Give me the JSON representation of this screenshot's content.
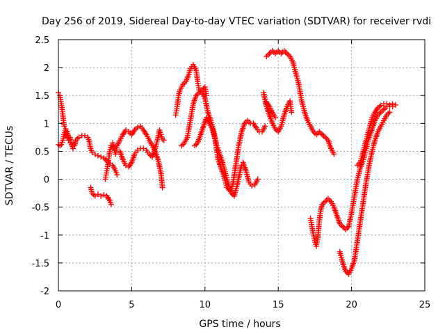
{
  "chart_data": {
    "type": "scatter",
    "title": "Day 256 of 2019, Sidereal Day-to-day VTEC variation (SDTVAR) for receiver rvdi",
    "xlabel": "GPS time / hours",
    "ylabel": "SDTVAR / TECUs",
    "xlim": [
      0,
      25
    ],
    "ylim": [
      -2,
      2.5
    ],
    "xticks": [
      "0",
      "5",
      "10",
      "15",
      "20",
      "25"
    ],
    "yticks": [
      "2.5",
      "2",
      "1.5",
      "1",
      "0.5",
      "0",
      "-0.5",
      "-1",
      "-1.5",
      "-2"
    ],
    "grid": true,
    "marker": "+",
    "color": "#ff0000",
    "series": [
      {
        "segments": [
          [
            [
              0.0,
              1.55
            ],
            [
              0.1,
              1.5
            ],
            [
              0.2,
              1.35
            ],
            [
              0.3,
              1.15
            ],
            [
              0.4,
              0.95
            ],
            [
              0.5,
              0.9
            ],
            [
              0.6,
              0.75
            ],
            [
              0.7,
              0.7
            ],
            [
              0.8,
              0.75
            ],
            [
              0.9,
              0.62
            ],
            [
              1.0,
              0.55
            ],
            [
              1.1,
              0.6
            ],
            [
              1.2,
              0.7
            ],
            [
              1.4,
              0.75
            ],
            [
              1.6,
              0.78
            ],
            [
              1.8,
              0.78
            ],
            [
              2.0,
              0.75
            ],
            [
              2.1,
              0.68
            ],
            [
              2.2,
              0.55
            ],
            [
              2.3,
              0.48
            ],
            [
              2.5,
              0.45
            ],
            [
              2.7,
              0.42
            ],
            [
              2.9,
              0.4
            ],
            [
              3.1,
              0.38
            ],
            [
              3.3,
              0.33
            ],
            [
              3.5,
              0.28
            ],
            [
              3.7,
              0.25
            ],
            [
              3.9,
              0.15
            ],
            [
              4.0,
              0.08
            ]
          ],
          [
            [
              0.0,
              0.62
            ],
            [
              0.1,
              0.6
            ],
            [
              0.2,
              0.62
            ],
            [
              0.3,
              0.7
            ],
            [
              0.4,
              0.8
            ],
            [
              0.5,
              0.9
            ],
            [
              0.6,
              0.85
            ],
            [
              0.7,
              0.7
            ],
            [
              0.8,
              0.65
            ]
          ],
          [
            [
              2.2,
              -0.15
            ],
            [
              2.3,
              -0.25
            ],
            [
              2.5,
              -0.3
            ],
            [
              2.7,
              -0.27
            ],
            [
              2.9,
              -0.3
            ],
            [
              3.1,
              -0.28
            ],
            [
              3.3,
              -0.3
            ],
            [
              3.5,
              -0.38
            ],
            [
              3.6,
              -0.45
            ]
          ],
          [
            [
              3.2,
              0.0
            ],
            [
              3.3,
              0.15
            ],
            [
              3.4,
              0.3
            ],
            [
              3.5,
              0.5
            ],
            [
              3.6,
              0.6
            ],
            [
              3.7,
              0.65
            ],
            [
              3.8,
              0.55
            ],
            [
              3.9,
              0.45
            ],
            [
              4.0,
              0.6
            ],
            [
              4.2,
              0.7
            ],
            [
              4.4,
              0.8
            ],
            [
              4.6,
              0.88
            ],
            [
              4.8,
              0.85
            ],
            [
              5.0,
              0.8
            ],
            [
              5.2,
              0.88
            ],
            [
              5.4,
              0.93
            ],
            [
              5.6,
              0.95
            ],
            [
              5.8,
              0.88
            ],
            [
              6.0,
              0.8
            ],
            [
              6.2,
              0.7
            ],
            [
              6.4,
              0.6
            ],
            [
              6.6,
              0.5
            ],
            [
              6.8,
              0.35
            ],
            [
              7.0,
              0.1
            ],
            [
              7.1,
              -0.15
            ]
          ],
          [
            [
              4.2,
              0.5
            ],
            [
              4.4,
              0.35
            ],
            [
              4.6,
              0.25
            ],
            [
              4.8,
              0.22
            ],
            [
              5.0,
              0.3
            ],
            [
              5.2,
              0.45
            ],
            [
              5.4,
              0.52
            ],
            [
              5.6,
              0.55
            ],
            [
              5.8,
              0.55
            ],
            [
              6.0,
              0.52
            ],
            [
              6.2,
              0.45
            ],
            [
              6.4,
              0.4
            ],
            [
              6.6,
              0.55
            ],
            [
              6.8,
              0.75
            ],
            [
              6.9,
              0.88
            ],
            [
              7.0,
              0.8
            ],
            [
              7.1,
              0.72
            ],
            [
              7.2,
              0.7
            ]
          ],
          [
            [
              8.0,
              1.15
            ],
            [
              8.1,
              1.3
            ],
            [
              8.2,
              1.5
            ],
            [
              8.3,
              1.6
            ],
            [
              8.5,
              1.7
            ],
            [
              8.7,
              1.75
            ],
            [
              8.9,
              1.88
            ],
            [
              9.0,
              1.98
            ],
            [
              9.2,
              2.05
            ],
            [
              9.4,
              1.95
            ],
            [
              9.5,
              1.75
            ],
            [
              9.6,
              1.6
            ],
            [
              9.8,
              1.55
            ],
            [
              10.0,
              1.45
            ],
            [
              10.2,
              1.2
            ],
            [
              10.4,
              1.05
            ],
            [
              10.6,
              0.85
            ],
            [
              10.8,
              0.6
            ],
            [
              11.0,
              0.45
            ],
            [
              11.2,
              0.3
            ],
            [
              11.4,
              0.1
            ],
            [
              11.6,
              -0.1
            ],
            [
              11.8,
              -0.25
            ],
            [
              12.0,
              -0.3
            ],
            [
              12.2,
              -0.1
            ],
            [
              12.4,
              0.15
            ],
            [
              12.5,
              0.25
            ],
            [
              12.6,
              0.3
            ],
            [
              12.8,
              0.15
            ],
            [
              13.0,
              -0.05
            ],
            [
              13.2,
              -0.12
            ],
            [
              13.4,
              -0.1
            ],
            [
              13.6,
              0.0
            ]
          ],
          [
            [
              8.4,
              0.6
            ],
            [
              8.6,
              0.65
            ],
            [
              8.8,
              0.75
            ],
            [
              9.0,
              1.05
            ],
            [
              9.2,
              1.35
            ],
            [
              9.4,
              1.5
            ],
            [
              9.6,
              1.55
            ],
            [
              9.8,
              1.6
            ],
            [
              10.0,
              1.65
            ],
            [
              10.1,
              1.5
            ]
          ],
          [
            [
              9.3,
              0.6
            ],
            [
              9.5,
              0.65
            ],
            [
              9.7,
              0.8
            ],
            [
              9.9,
              0.95
            ],
            [
              10.1,
              1.1
            ],
            [
              10.3,
              1.0
            ],
            [
              10.5,
              0.9
            ],
            [
              10.7,
              0.7
            ],
            [
              10.9,
              0.35
            ],
            [
              11.1,
              0.2
            ],
            [
              11.3,
              0.05
            ],
            [
              11.5,
              -0.15
            ],
            [
              11.7,
              -0.2
            ],
            [
              11.9,
              -0.1
            ],
            [
              12.1,
              0.25
            ],
            [
              12.3,
              0.6
            ],
            [
              12.5,
              0.85
            ],
            [
              12.7,
              1.0
            ],
            [
              12.9,
              1.05
            ],
            [
              13.1,
              1.0
            ],
            [
              13.3,
              1.0
            ],
            [
              13.5,
              0.92
            ],
            [
              13.7,
              0.85
            ],
            [
              13.9,
              0.85
            ],
            [
              14.1,
              0.95
            ]
          ],
          [
            [
              14.0,
              1.55
            ],
            [
              14.2,
              1.3
            ],
            [
              14.4,
              1.15
            ],
            [
              14.6,
              1.0
            ],
            [
              14.8,
              0.9
            ],
            [
              15.0,
              0.85
            ],
            [
              15.2,
              0.95
            ],
            [
              15.4,
              1.15
            ],
            [
              15.6,
              1.3
            ],
            [
              15.8,
              1.4
            ],
            [
              15.9,
              1.2
            ]
          ],
          [
            [
              14.2,
              1.38
            ],
            [
              14.4,
              1.3
            ],
            [
              14.6,
              1.2
            ],
            [
              14.8,
              1.1
            ]
          ],
          [
            [
              14.2,
              2.2
            ],
            [
              14.4,
              2.25
            ],
            [
              14.6,
              2.3
            ],
            [
              14.8,
              2.25
            ],
            [
              15.0,
              2.3
            ],
            [
              15.2,
              2.25
            ],
            [
              15.4,
              2.3
            ],
            [
              15.6,
              2.25
            ],
            [
              15.8,
              2.2
            ],
            [
              16.0,
              2.1
            ],
            [
              16.2,
              1.9
            ],
            [
              16.4,
              1.7
            ],
            [
              16.6,
              1.4
            ],
            [
              16.8,
              1.2
            ],
            [
              17.0,
              1.05
            ],
            [
              17.2,
              0.95
            ],
            [
              17.4,
              0.85
            ],
            [
              17.6,
              0.8
            ],
            [
              17.8,
              0.85
            ],
            [
              18.0,
              0.8
            ],
            [
              18.2,
              0.75
            ],
            [
              18.4,
              0.7
            ],
            [
              18.6,
              0.55
            ],
            [
              18.8,
              0.45
            ]
          ],
          [
            [
              17.2,
              -0.7
            ],
            [
              17.3,
              -0.85
            ],
            [
              17.4,
              -1.0
            ],
            [
              17.5,
              -1.1
            ],
            [
              17.6,
              -1.2
            ],
            [
              17.7,
              -1.05
            ],
            [
              17.8,
              -0.75
            ],
            [
              17.9,
              -0.55
            ],
            [
              18.0,
              -0.45
            ],
            [
              18.2,
              -0.4
            ],
            [
              18.4,
              -0.35
            ],
            [
              18.6,
              -0.4
            ],
            [
              18.8,
              -0.5
            ],
            [
              19.0,
              -0.65
            ],
            [
              19.2,
              -0.8
            ],
            [
              19.4,
              -0.85
            ],
            [
              19.6,
              -0.9
            ],
            [
              19.8,
              -0.85
            ],
            [
              20.0,
              -0.6
            ],
            [
              20.2,
              -0.3
            ],
            [
              20.4,
              0.0
            ],
            [
              20.6,
              0.2
            ],
            [
              20.8,
              0.35
            ],
            [
              21.0,
              0.55
            ],
            [
              21.2,
              0.75
            ],
            [
              21.4,
              0.9
            ],
            [
              21.6,
              1.05
            ],
            [
              21.8,
              1.15
            ],
            [
              22.0,
              1.2
            ],
            [
              22.2,
              1.25
            ],
            [
              22.4,
              1.3
            ],
            [
              22.6,
              1.3
            ],
            [
              22.8,
              1.3
            ]
          ],
          [
            [
              19.2,
              -1.3
            ],
            [
              19.4,
              -1.5
            ],
            [
              19.6,
              -1.65
            ],
            [
              19.8,
              -1.7
            ],
            [
              20.0,
              -1.6
            ],
            [
              20.2,
              -1.45
            ],
            [
              20.4,
              -1.1
            ],
            [
              20.6,
              -0.75
            ],
            [
              20.8,
              -0.4
            ],
            [
              21.0,
              -0.05
            ],
            [
              21.2,
              0.25
            ],
            [
              21.4,
              0.5
            ],
            [
              21.6,
              0.7
            ],
            [
              21.8,
              0.85
            ],
            [
              22.0,
              0.95
            ],
            [
              22.2,
              1.05
            ],
            [
              22.4,
              1.15
            ],
            [
              22.6,
              1.2
            ]
          ],
          [
            [
              20.4,
              0.25
            ],
            [
              20.6,
              0.3
            ],
            [
              20.8,
              0.5
            ],
            [
              21.0,
              0.7
            ],
            [
              21.2,
              0.9
            ],
            [
              21.4,
              1.1
            ],
            [
              21.6,
              1.2
            ],
            [
              21.8,
              1.28
            ],
            [
              22.0,
              1.32
            ],
            [
              22.2,
              1.35
            ],
            [
              22.4,
              1.35
            ],
            [
              22.6,
              1.33
            ],
            [
              22.8,
              1.35
            ],
            [
              23.0,
              1.33
            ]
          ]
        ]
      }
    ]
  }
}
